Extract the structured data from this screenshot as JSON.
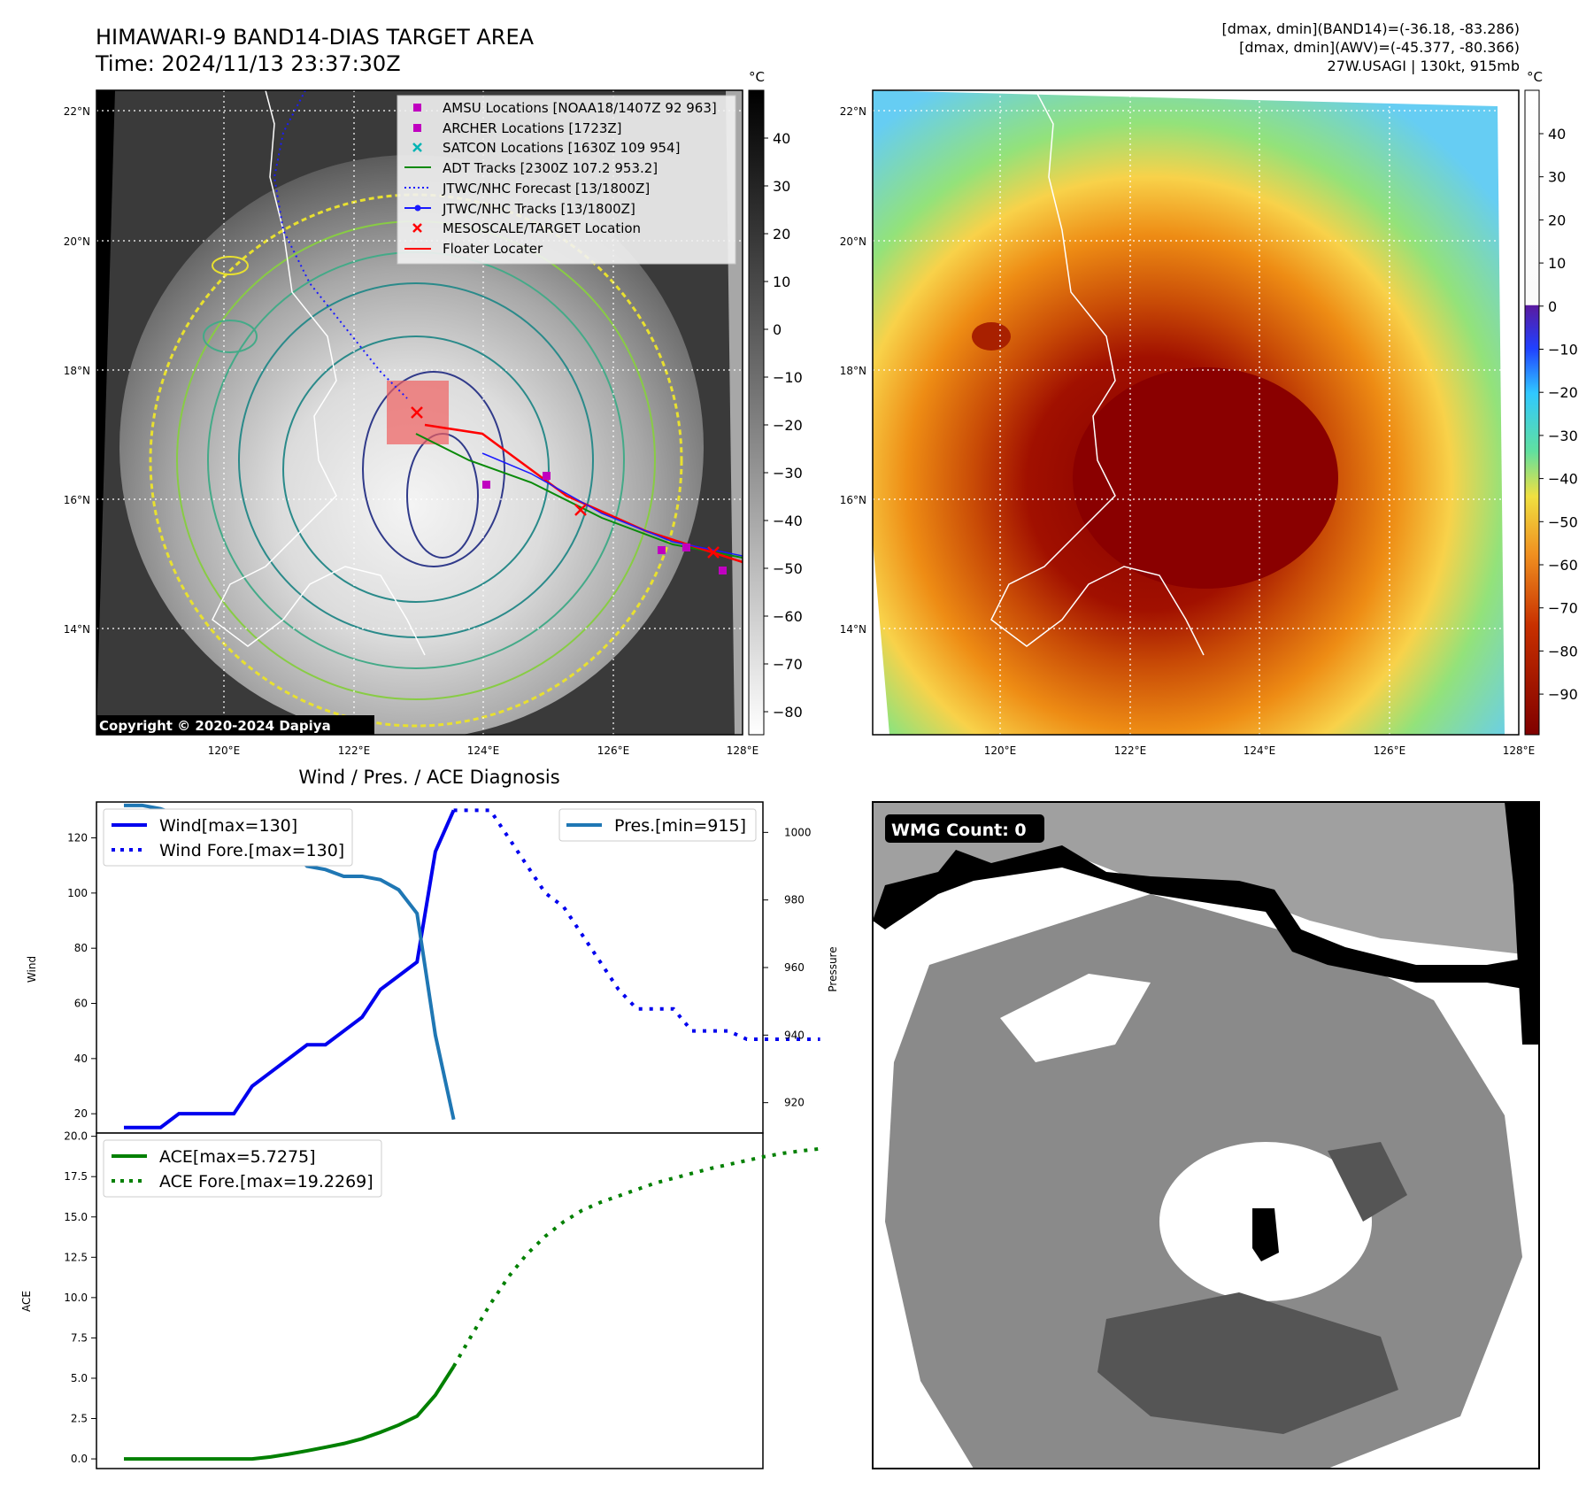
{
  "header": {
    "title_line1": "HIMAWARI-9 BAND14-DIAS TARGET AREA",
    "title_line2": "Time: 2024/11/13 23:37:30Z",
    "info_line1": "[dmax, dmin](BAND14)=(-36.18, -83.286)",
    "info_line2": "[dmax, dmin](AWV)=(-45.377, -80.366)",
    "info_line3": "27W.USAGI | 130kt, 915mb"
  },
  "maps": {
    "lat_ticks": [
      "22°N",
      "20°N",
      "18°N",
      "16°N",
      "14°N"
    ],
    "lon_ticks": [
      "120°E",
      "122°E",
      "124°E",
      "126°E",
      "128°E"
    ],
    "copyright": "Copyright © 2020-2024 Dapiya",
    "gray_colorbar": {
      "unit": "°C",
      "ticks": [
        "40",
        "30",
        "20",
        "10",
        "0",
        "−10",
        "−20",
        "−30",
        "−40",
        "−50",
        "−60",
        "−70",
        "−80"
      ]
    },
    "color_colorbar": {
      "unit": "°C",
      "ticks": [
        "40",
        "30",
        "20",
        "10",
        "0",
        "−10",
        "−20",
        "−30",
        "−40",
        "−50",
        "−60",
        "−70",
        "−80",
        "−90"
      ]
    },
    "legend": [
      {
        "label": "AMSU Locations [NOAA18/1407Z 92 963]",
        "color": "#c000c0",
        "marker": "square"
      },
      {
        "label": "ARCHER Locations [1723Z]",
        "color": "#c000c0",
        "marker": "square"
      },
      {
        "label": "SATCON Locations [1630Z 109 954]",
        "color": "#00b4b4",
        "marker": "x"
      },
      {
        "label": "ADT Tracks [2300Z 107.2 953.2]",
        "color": "#0a8a0a",
        "marker": "line"
      },
      {
        "label": "JTWC/NHC Forecast [13/1800Z]",
        "color": "#1a1aff",
        "marker": "dotted"
      },
      {
        "label": "JTWC/NHC Tracks [13/1800Z]",
        "color": "#1a1aff",
        "marker": "line-dot"
      },
      {
        "label": "MESOSCALE/TARGET Location",
        "color": "#ff0000",
        "marker": "x"
      },
      {
        "label": "Floater Locater",
        "color": "#ff0000",
        "marker": "line"
      }
    ],
    "wmg_count": "WMG Count: 0"
  },
  "chart_data": [
    {
      "type": "line",
      "title": "Wind / Pres. / ACE Diagnosis",
      "ylabel": "Wind",
      "y2label": "Pressure",
      "ylim": [
        13,
        133
      ],
      "y2lim": [
        911,
        1009
      ],
      "yticks": [
        "20",
        "40",
        "60",
        "80",
        "100",
        "120"
      ],
      "y2ticks": [
        "920",
        "940",
        "960",
        "980",
        "1000"
      ],
      "series": [
        {
          "name": "Wind[max=130]",
          "color": "#0000ee",
          "style": "solid",
          "values": [
            15,
            15,
            15,
            20,
            20,
            20,
            20,
            30,
            35,
            40,
            45,
            45,
            50,
            55,
            65,
            70,
            75,
            115,
            130
          ]
        },
        {
          "name": "Wind Fore.[max=130]",
          "color": "#0000ee",
          "style": "dotted",
          "offset": 18,
          "values": [
            130,
            130,
            130,
            120,
            110,
            100,
            95,
            85,
            75,
            65,
            58,
            58,
            58,
            50,
            50,
            50,
            47,
            47,
            47,
            47,
            47
          ]
        },
        {
          "name": "Pres.[min=915]",
          "color": "#1f77b4",
          "style": "solid",
          "axis": "right",
          "values": [
            1008,
            1008,
            1007,
            1005,
            1005,
            1004,
            1004,
            1000,
            998,
            995,
            990,
            989,
            987,
            987,
            986,
            983,
            976,
            940,
            915
          ]
        }
      ]
    },
    {
      "type": "line",
      "ylabel": "ACE",
      "ylim": [
        -0.6,
        20.2
      ],
      "yticks": [
        "0.0",
        "2.5",
        "5.0",
        "7.5",
        "10.0",
        "12.5",
        "15.0",
        "17.5",
        "20.0"
      ],
      "series": [
        {
          "name": "ACE[max=5.7275]",
          "color": "#008000",
          "style": "solid",
          "values": [
            0,
            0,
            0,
            0,
            0,
            0,
            0,
            0,
            0.12,
            0.3,
            0.5,
            0.72,
            0.95,
            1.25,
            1.65,
            2.1,
            2.65,
            3.95,
            5.7275
          ]
        },
        {
          "name": "ACE Fore.[max=19.2269]",
          "color": "#008000",
          "style": "dotted",
          "offset": 18,
          "values": [
            5.73,
            7.7,
            9.6,
            11.3,
            12.7,
            13.8,
            14.7,
            15.4,
            15.9,
            16.3,
            16.7,
            17.1,
            17.4,
            17.7,
            18.0,
            18.25,
            18.5,
            18.75,
            18.95,
            19.1,
            19.2269
          ]
        }
      ]
    }
  ]
}
